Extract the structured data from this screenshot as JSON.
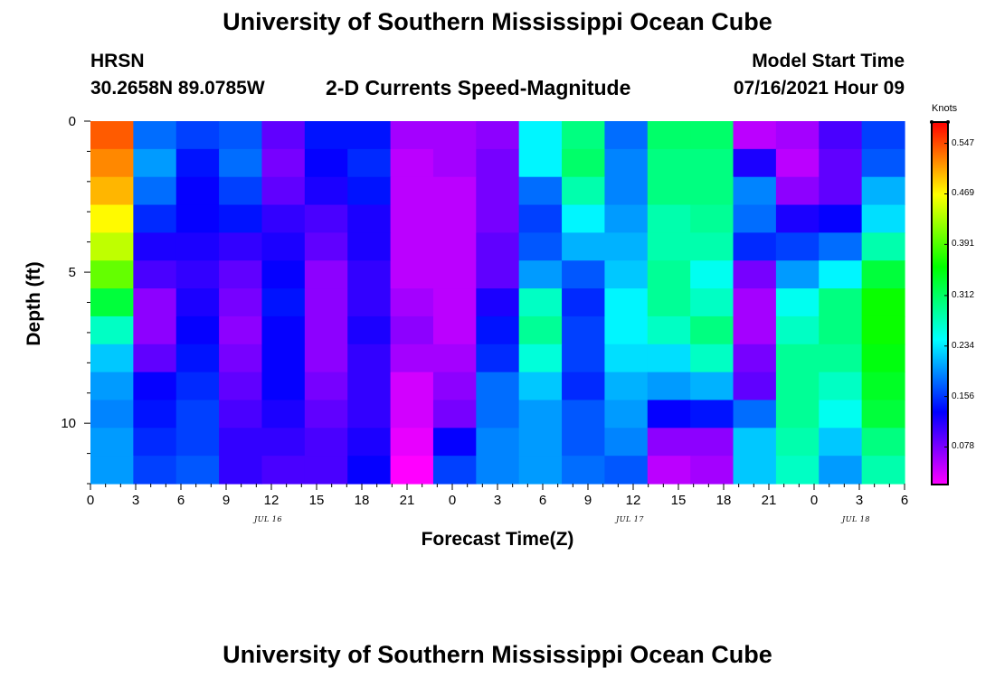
{
  "header": {
    "title_top": "University of Southern Mississippi Ocean Cube",
    "title_bottom": "University of Southern Mississippi Ocean Cube",
    "station": "HRSN",
    "coords": "30.2658N  89.0785W",
    "model_start_label": "Model Start Time",
    "model_start_value": "07/16/2021 Hour 09"
  },
  "chart_data": {
    "type": "heatmap",
    "title": "2-D Currents Speed-Magnitude",
    "xlabel": "Forecast Time(Z)",
    "ylabel": "Depth (ft)",
    "y_ticks": [
      "0",
      "5",
      "10"
    ],
    "y_tick_values": [
      0,
      5,
      10
    ],
    "ylim": [
      0,
      12
    ],
    "x_ticks": [
      "0",
      "3",
      "6",
      "9",
      "12",
      "15",
      "18",
      "21",
      "0",
      "3",
      "6",
      "9",
      "12",
      "15",
      "18",
      "21",
      "0",
      "3",
      "6"
    ],
    "x_hours": [
      0,
      54
    ],
    "date_labels": [
      "JUL 16",
      "JUL 17",
      "JUL 18"
    ],
    "colorbar": {
      "label": "Knots",
      "ticks": [
        "0.547",
        "0.469",
        "0.391",
        "0.312",
        "0.234",
        "0.156",
        "0.078"
      ],
      "tick_values": [
        0.547,
        0.469,
        0.391,
        0.312,
        0.234,
        0.156,
        0.078
      ],
      "range": [
        0.02,
        0.58
      ]
    },
    "depth_levels": [
      0,
      1,
      2,
      3,
      4,
      5,
      6,
      7,
      8,
      9,
      10,
      11,
      12
    ],
    "time_hours": [
      0,
      3,
      6,
      9,
      12,
      15,
      18,
      21,
      24,
      27,
      30,
      33,
      36,
      39,
      42,
      45,
      48,
      51,
      54
    ],
    "values": [
      [
        0.54,
        0.18,
        0.16,
        0.17,
        0.09,
        0.14,
        0.14,
        0.06,
        0.06,
        0.07,
        0.24,
        0.3,
        0.18,
        0.31,
        0.31,
        0.05,
        0.06,
        0.1,
        0.16
      ],
      [
        0.52,
        0.2,
        0.14,
        0.18,
        0.08,
        0.13,
        0.15,
        0.05,
        0.06,
        0.08,
        0.24,
        0.31,
        0.19,
        0.3,
        0.3,
        0.12,
        0.05,
        0.09,
        0.17
      ],
      [
        0.5,
        0.18,
        0.13,
        0.16,
        0.09,
        0.12,
        0.14,
        0.05,
        0.05,
        0.08,
        0.18,
        0.28,
        0.19,
        0.3,
        0.3,
        0.19,
        0.07,
        0.09,
        0.21
      ],
      [
        0.47,
        0.15,
        0.13,
        0.14,
        0.11,
        0.1,
        0.12,
        0.05,
        0.05,
        0.08,
        0.16,
        0.24,
        0.2,
        0.28,
        0.29,
        0.18,
        0.12,
        0.13,
        0.23
      ],
      [
        0.44,
        0.12,
        0.12,
        0.11,
        0.12,
        0.09,
        0.12,
        0.05,
        0.05,
        0.09,
        0.17,
        0.21,
        0.21,
        0.28,
        0.28,
        0.15,
        0.16,
        0.18,
        0.28
      ],
      [
        0.4,
        0.1,
        0.11,
        0.09,
        0.13,
        0.07,
        0.11,
        0.05,
        0.05,
        0.09,
        0.2,
        0.17,
        0.22,
        0.29,
        0.25,
        0.08,
        0.2,
        0.24,
        0.33
      ],
      [
        0.33,
        0.07,
        0.12,
        0.08,
        0.14,
        0.07,
        0.11,
        0.06,
        0.05,
        0.12,
        0.27,
        0.15,
        0.24,
        0.29,
        0.27,
        0.06,
        0.25,
        0.3,
        0.36
      ],
      [
        0.27,
        0.07,
        0.13,
        0.07,
        0.13,
        0.07,
        0.12,
        0.07,
        0.05,
        0.14,
        0.29,
        0.16,
        0.24,
        0.27,
        0.3,
        0.06,
        0.27,
        0.3,
        0.36
      ],
      [
        0.22,
        0.09,
        0.14,
        0.08,
        0.13,
        0.07,
        0.11,
        0.06,
        0.06,
        0.15,
        0.26,
        0.16,
        0.23,
        0.23,
        0.27,
        0.08,
        0.29,
        0.29,
        0.35
      ],
      [
        0.2,
        0.13,
        0.15,
        0.09,
        0.13,
        0.08,
        0.11,
        0.04,
        0.07,
        0.18,
        0.22,
        0.15,
        0.21,
        0.2,
        0.21,
        0.09,
        0.29,
        0.27,
        0.34
      ],
      [
        0.19,
        0.14,
        0.16,
        0.1,
        0.12,
        0.09,
        0.11,
        0.04,
        0.08,
        0.18,
        0.2,
        0.17,
        0.2,
        0.13,
        0.14,
        0.18,
        0.29,
        0.25,
        0.33
      ],
      [
        0.2,
        0.15,
        0.16,
        0.11,
        0.11,
        0.1,
        0.12,
        0.03,
        0.13,
        0.19,
        0.2,
        0.17,
        0.19,
        0.07,
        0.07,
        0.22,
        0.28,
        0.22,
        0.3
      ],
      [
        0.2,
        0.16,
        0.17,
        0.11,
        0.1,
        0.1,
        0.13,
        0.02,
        0.16,
        0.19,
        0.2,
        0.18,
        0.17,
        0.05,
        0.06,
        0.22,
        0.27,
        0.2,
        0.28
      ]
    ]
  }
}
